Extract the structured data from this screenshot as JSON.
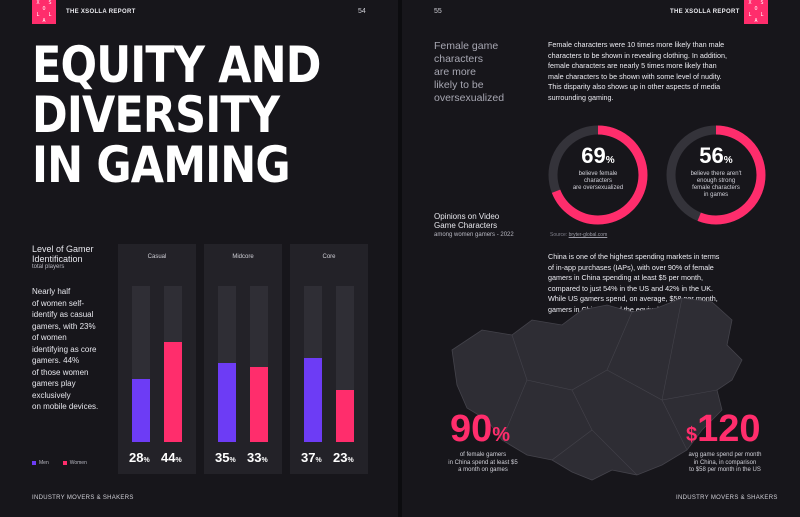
{
  "left": {
    "logo_letters": [
      "X",
      "S",
      "O",
      "L",
      "L",
      "A"
    ],
    "header_title": "THE XSOLLA REPORT",
    "page_number": "54",
    "title_lines": [
      "EQUITY AND",
      "DIVERSITY",
      "IN GAMING"
    ],
    "chart_title_lines": [
      "Level of Gamer",
      "Identification"
    ],
    "chart_subtitle": "total players",
    "description_lines": [
      "Nearly half",
      "of women self-",
      "identify as casual",
      "gamers, with 23%",
      "of women",
      "identifying as core",
      "gamers. 44%",
      "of those women",
      "gamers play",
      "exclusively",
      "on mobile devices."
    ],
    "footer": "INDUSTRY MOVERS & SHAKERS"
  },
  "chart_data": {
    "type": "bar",
    "title": "Level of Gamer Identification",
    "subtitle": "total players",
    "categories": [
      "Casual",
      "Midcore",
      "Core"
    ],
    "series": [
      {
        "name": "Men",
        "values": [
          28,
          35,
          37
        ],
        "color": "#6d3cf5"
      },
      {
        "name": "Women",
        "values": [
          44,
          33,
          23
        ],
        "color": "#ff2d6c"
      }
    ],
    "ylim": [
      0,
      100
    ],
    "value_suffix": "%",
    "legend_position": "bottom-left"
  },
  "right": {
    "page_number": "55",
    "header_title": "THE XSOLLA REPORT",
    "logo_letters": [
      "X",
      "S",
      "O",
      "L",
      "L",
      "A"
    ],
    "section_heading_lines": [
      "Female game",
      "characters",
      "are more",
      "likely to be",
      "oversexualized"
    ],
    "paragraph1_lines": [
      "Female characters were 10 times more likely than male",
      "characters to be shown in revealing clothing. In addition,",
      "female characters are nearly 5 times more likely than",
      "male characters to be shown with some level of nudity.",
      "This disparity also shows up in other aspects of media",
      "surrounding gaming."
    ],
    "donuts": [
      {
        "value": 69,
        "suffix": "%",
        "caption_lines": [
          "believe female",
          "characters",
          "are oversexualized"
        ]
      },
      {
        "value": 56,
        "suffix": "%",
        "caption_lines": [
          "believe there aren't",
          "enough strong",
          "female characters",
          "in games"
        ]
      }
    ],
    "opinions_title_lines": [
      "Opinions on Video",
      "Game Characters"
    ],
    "opinions_subtitle": "among women gamers - 2022",
    "source_label": "Source:",
    "source_link": "bryter-global.com",
    "paragraph2_lines": [
      "China is one of the highest spending markets in terms",
      "of in-app purchases (IAPs), with over 90% of female",
      "gamers in China spending at least $5 per month,",
      "compared to just 54% in the US and 42% in the UK.",
      "While US gamers spend, on average, $58 per month,",
      "gamers in China spend the equivalent of around $120."
    ],
    "stat1": {
      "value": "90",
      "suffix": "%",
      "caption_lines": [
        "of female gamers",
        "in China spend at least $5",
        "a month on games"
      ]
    },
    "stat2": {
      "prefix": "$",
      "value": "120",
      "caption_lines": [
        "avg game spend per month",
        "in China, in comparison",
        "to $58 per month in the US"
      ]
    },
    "footer": "INDUSTRY MOVERS & SHAKERS"
  },
  "colors": {
    "accent": "#ff2d6c",
    "men": "#6d3cf5",
    "background": "#17161b"
  }
}
